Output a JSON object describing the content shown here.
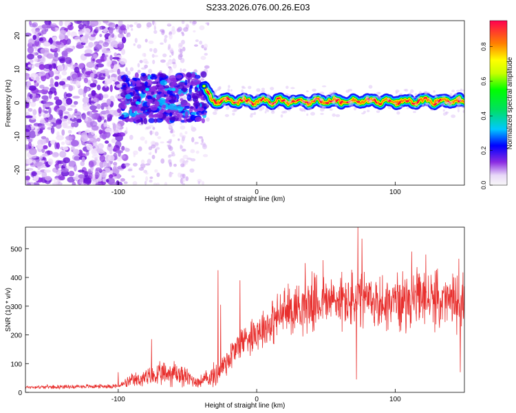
{
  "title": "S233.2026.076.00.26.E03",
  "colors": {
    "snr_line": "#e8302e",
    "axis": "#000000"
  },
  "chart_data": [
    {
      "type": "heatmap",
      "xlabel": "Height of straight line (km)",
      "ylabel": "Frequency (Hz)",
      "xlim": [
        -167,
        150
      ],
      "ylim": [
        -24.5,
        24.5
      ],
      "x_ticks": [
        -100,
        0,
        100
      ],
      "x_tick_labels": [
        "-100",
        "0",
        "100"
      ],
      "y_ticks": [
        -20,
        -10,
        0,
        10,
        20
      ],
      "y_tick_labels": [
        "-20",
        "-10",
        "0",
        "10",
        "20"
      ],
      "colorbar": {
        "label": "Normalized spectral amplitude",
        "range": [
          0,
          0.95
        ],
        "ticks": [
          0.0,
          0.2,
          0.4,
          0.6,
          0.8
        ],
        "tick_labels": [
          "0.0",
          "0.2",
          "0.4",
          "0.6",
          "0.8"
        ]
      },
      "features": {
        "noise_region_x": [
          -167,
          -95
        ],
        "blob_region_x": [
          -97,
          -37
        ],
        "tone_start_x": -38,
        "tone_freq_hz": 0.5
      }
    },
    {
      "type": "line",
      "xlabel": "Height of straight line (km)",
      "ylabel": "SNR (10 * v/v)",
      "xlim": [
        -167,
        150
      ],
      "ylim": [
        0,
        575
      ],
      "x_ticks": [
        -100,
        0,
        100
      ],
      "x_tick_labels": [
        "-100",
        "0",
        "100"
      ],
      "y_ticks": [
        0,
        100,
        200,
        300,
        400,
        500
      ],
      "y_tick_labels": [
        "0",
        "100",
        "200",
        "300",
        "400",
        "500"
      ],
      "series": [
        {
          "name": "SNR",
          "baseline_x": [
            -167,
            -100,
            -90,
            -60,
            -42,
            -30,
            -20,
            -10,
            0,
            10,
            20,
            30,
            40,
            50,
            60,
            70,
            80,
            90,
            100,
            110,
            120,
            130,
            140,
            150
          ],
          "baseline_y": [
            18,
            22,
            40,
            70,
            35,
            60,
            120,
            180,
            215,
            240,
            280,
            300,
            310,
            315,
            320,
            315,
            320,
            310,
            318,
            320,
            325,
            320,
            315,
            320
          ],
          "noise_amplitude": [
            6,
            8,
            25,
            50,
            20,
            45,
            60,
            60,
            70,
            80,
            90,
            95,
            100,
            100,
            100,
            110,
            100,
            100,
            100,
            100,
            100,
            100,
            100,
            100
          ],
          "peaks": [
            [
              -100,
              70
            ],
            [
              -76,
              185
            ],
            [
              -28,
              425
            ],
            [
              -12,
              390
            ],
            [
              -26,
              305
            ],
            [
              35,
              450
            ],
            [
              48,
              460
            ],
            [
              73,
              578
            ],
            [
              72,
              45
            ],
            [
              76,
              535
            ],
            [
              112,
              490
            ],
            [
              122,
              480
            ],
            [
              146,
              465
            ],
            [
              147,
              70
            ]
          ]
        }
      ]
    }
  ]
}
